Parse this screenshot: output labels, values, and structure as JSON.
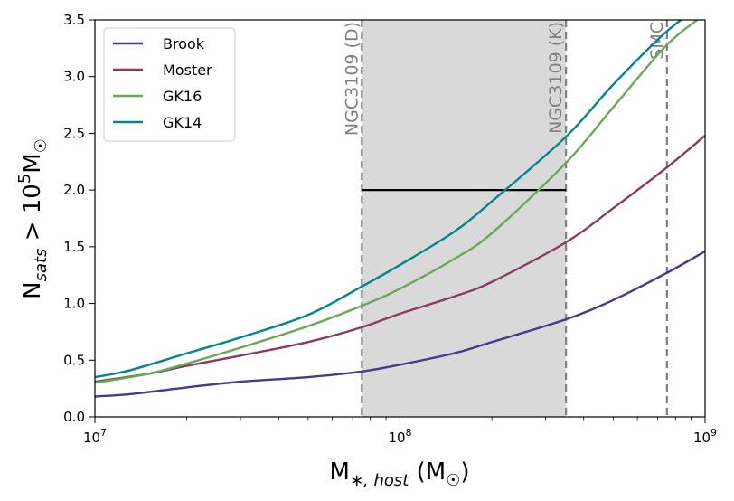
{
  "chart_data": {
    "type": "line",
    "x_scale": "log",
    "xlim": [
      10000000,
      1000000000
    ],
    "ylim": [
      0,
      3.5
    ],
    "grid": false,
    "legend_position": "top-left",
    "xlabel": {
      "main": "M",
      "sub": "∗, host",
      "suffix": " (M",
      "odot": "☉",
      "close": ")"
    },
    "ylabel": {
      "main": "N",
      "sub": "sats",
      "middle": " > 10",
      "sup": "5",
      "unit": "M",
      "odot": "☉"
    },
    "x_ticks": [
      {
        "value": 10000000,
        "base": "10",
        "exp": "7"
      },
      {
        "value": 100000000,
        "base": "10",
        "exp": "8"
      },
      {
        "value": 1000000000,
        "base": "10",
        "exp": "9"
      }
    ],
    "y_ticks": [
      {
        "value": 0.0,
        "label": "0.0"
      },
      {
        "value": 0.5,
        "label": "0.5"
      },
      {
        "value": 1.0,
        "label": "1.0"
      },
      {
        "value": 1.5,
        "label": "1.5"
      },
      {
        "value": 2.0,
        "label": "2.0"
      },
      {
        "value": 2.5,
        "label": "2.5"
      },
      {
        "value": 3.0,
        "label": "3.0"
      },
      {
        "value": 3.5,
        "label": "3.5"
      }
    ],
    "series": [
      {
        "name": "Brook",
        "color": "#463a8c",
        "points": [
          [
            10000000,
            0.18
          ],
          [
            13000000,
            0.2
          ],
          [
            20000000,
            0.26
          ],
          [
            30000000,
            0.31
          ],
          [
            50000000,
            0.35
          ],
          [
            75000000,
            0.4
          ],
          [
            100000000,
            0.46
          ],
          [
            150000000,
            0.56
          ],
          [
            200000000,
            0.66
          ],
          [
            350000000,
            0.86
          ],
          [
            500000000,
            1.03
          ],
          [
            750000000,
            1.27
          ],
          [
            1000000000,
            1.46
          ]
        ]
      },
      {
        "name": "Moster",
        "color": "#8b3a62",
        "points": [
          [
            10000000,
            0.31
          ],
          [
            15000000,
            0.38
          ],
          [
            20000000,
            0.45
          ],
          [
            30000000,
            0.54
          ],
          [
            50000000,
            0.66
          ],
          [
            75000000,
            0.79
          ],
          [
            100000000,
            0.91
          ],
          [
            150000000,
            1.06
          ],
          [
            200000000,
            1.19
          ],
          [
            350000000,
            1.54
          ],
          [
            500000000,
            1.84
          ],
          [
            750000000,
            2.2
          ],
          [
            1000000000,
            2.48
          ]
        ]
      },
      {
        "name": "GK16",
        "color": "#66aa55",
        "points": [
          [
            10000000,
            0.3
          ],
          [
            15000000,
            0.38
          ],
          [
            20000000,
            0.47
          ],
          [
            30000000,
            0.61
          ],
          [
            50000000,
            0.8
          ],
          [
            75000000,
            0.98
          ],
          [
            100000000,
            1.13
          ],
          [
            150000000,
            1.39
          ],
          [
            200000000,
            1.62
          ],
          [
            350000000,
            2.24
          ],
          [
            500000000,
            2.73
          ],
          [
            750000000,
            3.28
          ],
          [
            1000000000,
            3.55
          ]
        ]
      },
      {
        "name": "GK14",
        "color": "#00878a",
        "points": [
          [
            10000000,
            0.35
          ],
          [
            13000000,
            0.41
          ],
          [
            20000000,
            0.56
          ],
          [
            30000000,
            0.7
          ],
          [
            50000000,
            0.9
          ],
          [
            75000000,
            1.15
          ],
          [
            100000000,
            1.34
          ],
          [
            150000000,
            1.63
          ],
          [
            200000000,
            1.9
          ],
          [
            350000000,
            2.47
          ],
          [
            500000000,
            2.93
          ],
          [
            750000000,
            3.4
          ],
          [
            1000000000,
            3.65
          ]
        ]
      }
    ],
    "shaded_band": {
      "x_start": 75000000,
      "x_end": 350000000,
      "color": "#d9d9d9"
    },
    "vertical_lines": [
      {
        "x": 75000000,
        "label": "NGC3109 (D)",
        "color": "#808080"
      },
      {
        "x": 350000000,
        "label": "NGC3109 (K)",
        "color": "#808080"
      },
      {
        "x": 750000000,
        "label": "SMC",
        "color": "#808080"
      }
    ],
    "horizontal_segment": {
      "x_start": 75000000,
      "x_end": 350000000,
      "y": 2.0,
      "color": "#000000"
    }
  }
}
